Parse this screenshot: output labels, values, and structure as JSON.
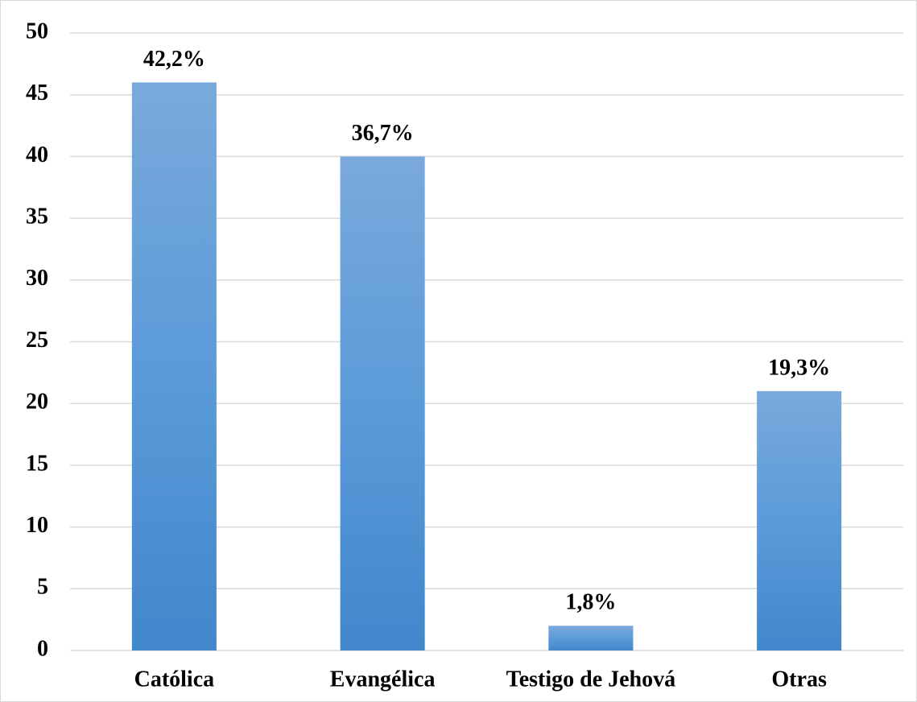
{
  "chart_data": {
    "type": "bar",
    "categories": [
      "Católica",
      "Evangélica",
      "Testigo de Jehová",
      "Otras"
    ],
    "values": [
      46,
      40,
      2,
      21
    ],
    "value_labels": [
      "42,2%",
      "36,7%",
      "1,8%",
      "19,3%"
    ],
    "color": "#5b9bd5",
    "ylim": [
      0,
      50
    ],
    "yticks": [
      0,
      5,
      10,
      15,
      20,
      25,
      30,
      35,
      40,
      45,
      50
    ],
    "grid": true
  }
}
